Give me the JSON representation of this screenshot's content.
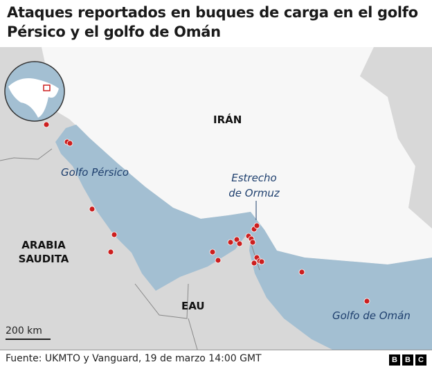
{
  "title": "Ataques reportados en buques de carga en el golfo Pérsico y el golfo de Omán",
  "labels": {
    "iran": "IRÁN",
    "saudi": "ARABIA SAUDITA",
    "uae": "EAU",
    "persian_gulf": "Golfo Pérsico",
    "hormuz_line1": "Estrecho",
    "hormuz_line2": "de Ormuz",
    "gulf_oman": "Golfo de Omán"
  },
  "scale": "200 km",
  "source": "Fuente: UKMTO y Vanguard, 19 de marzo 14:00 GMT",
  "logo": "BBC",
  "colors": {
    "sea": "#a3bfd2",
    "land": "#d8d8d8",
    "iran": "#f7f7f7",
    "attack": "#cc1f1f",
    "inset_box": "#cc1f1f"
  },
  "legend_marker": "attack-point"
}
